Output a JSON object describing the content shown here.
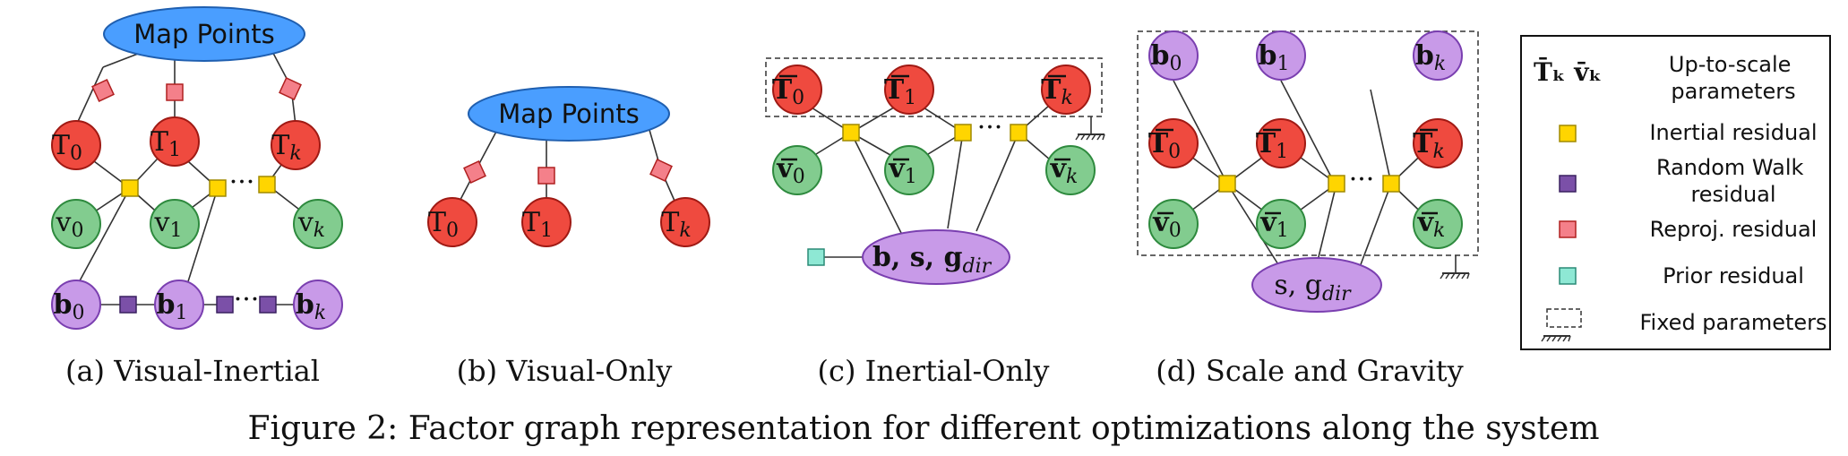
{
  "colors": {
    "map_points_fill": "#4a9eff",
    "pose_fill": "#ef4a3f",
    "velocity_fill": "#82cc8f",
    "bias_fill": "#c89ae8",
    "inertial_residual": "#ffd500",
    "random_walk_residual": "#7b50a8",
    "reproj_residual": "#f4808a",
    "prior_residual": "#8ee8d4"
  },
  "labels": {
    "map_points": "Map Points",
    "ellipsis": "···",
    "T": "T",
    "v": "v",
    "b": "b",
    "k": "k",
    "i0": "0",
    "i1": "1",
    "c_big_node": "b, s, g",
    "d_big_node": "s, g",
    "dir": "dir"
  },
  "panels": {
    "a": "(a) Visual-Inertial",
    "b": "(b) Visual-Only",
    "c": "(c) Inertial-Only",
    "d": "(d) Scale and Gravity"
  },
  "legend": {
    "up_to_scale_symbols": "T̄ₖ v̄ₖ",
    "up_to_scale": [
      "Up-to-scale",
      "parameters"
    ],
    "inertial": "Inertial residual",
    "random_walk": [
      "Random Walk",
      "residual"
    ],
    "reproj": "Reproj. residual",
    "prior": "Prior residual",
    "fixed": "Fixed parameters"
  },
  "caption": "Figure 2: Factor graph representation for different optimizations along the system"
}
